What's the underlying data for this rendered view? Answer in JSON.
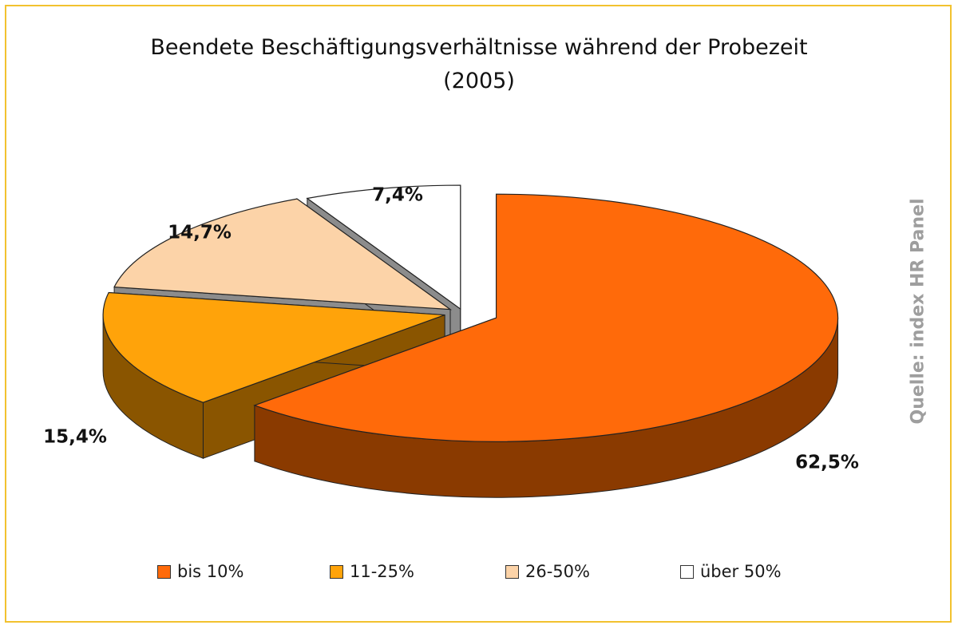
{
  "chart_data": {
    "type": "pie",
    "title": "Beendete Beschäftigungsverhältnisse während der Probezeit",
    "subtitle": "(2005)",
    "source": "Quelle: index HR Panel",
    "categories": [
      "bis 10%",
      "11-25%",
      "26-50%",
      "über 50%"
    ],
    "values": [
      62.5,
      15.4,
      14.7,
      7.4
    ],
    "value_labels": [
      "62,5%",
      "15,4%",
      "14,7%",
      "7,4%"
    ],
    "colors": [
      "#ff6a0a",
      "#ffa30a",
      "#fcd3a8",
      "#ffffff"
    ],
    "side_colors": [
      "#8a3a00",
      "#8a5500",
      "#8c8c8c",
      "#8c8c8c"
    ],
    "legend_position": "bottom",
    "3d": true,
    "exploded": true
  }
}
